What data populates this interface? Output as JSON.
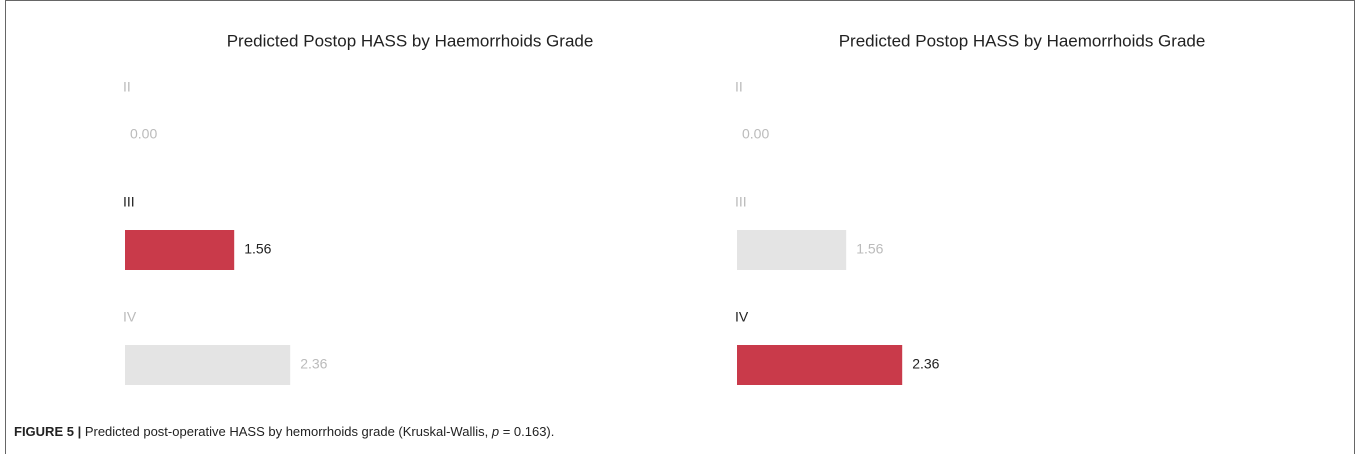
{
  "chart_data": [
    {
      "type": "bar",
      "title": "Predicted Postop HASS by Haemorrhoids Grade",
      "categories": [
        "II",
        "III",
        "IV"
      ],
      "values": [
        0,
        1.56,
        2.36
      ],
      "value_labels": [
        "0.00",
        "1.56",
        "2.36"
      ],
      "highlight": "III",
      "color": "#c93a4a",
      "muted_color": "#e4e4e4"
    },
    {
      "type": "bar",
      "title": "Predicted Postop HASS by Haemorrhoids Grade",
      "categories": [
        "II",
        "III",
        "IV"
      ],
      "values": [
        0,
        1.56,
        2.36
      ],
      "value_labels": [
        "0.00",
        "1.56",
        "2.36"
      ],
      "highlight": "IV",
      "color": "#c93a4a",
      "muted_color": "#e4e4e4"
    }
  ],
  "caption": {
    "label": "FIGURE 5 |",
    "text": " Predicted post-operative HASS by hemorrhoids grade (Kruskal-Wallis, ",
    "italic": "p",
    "rest": " = 0.163)."
  }
}
